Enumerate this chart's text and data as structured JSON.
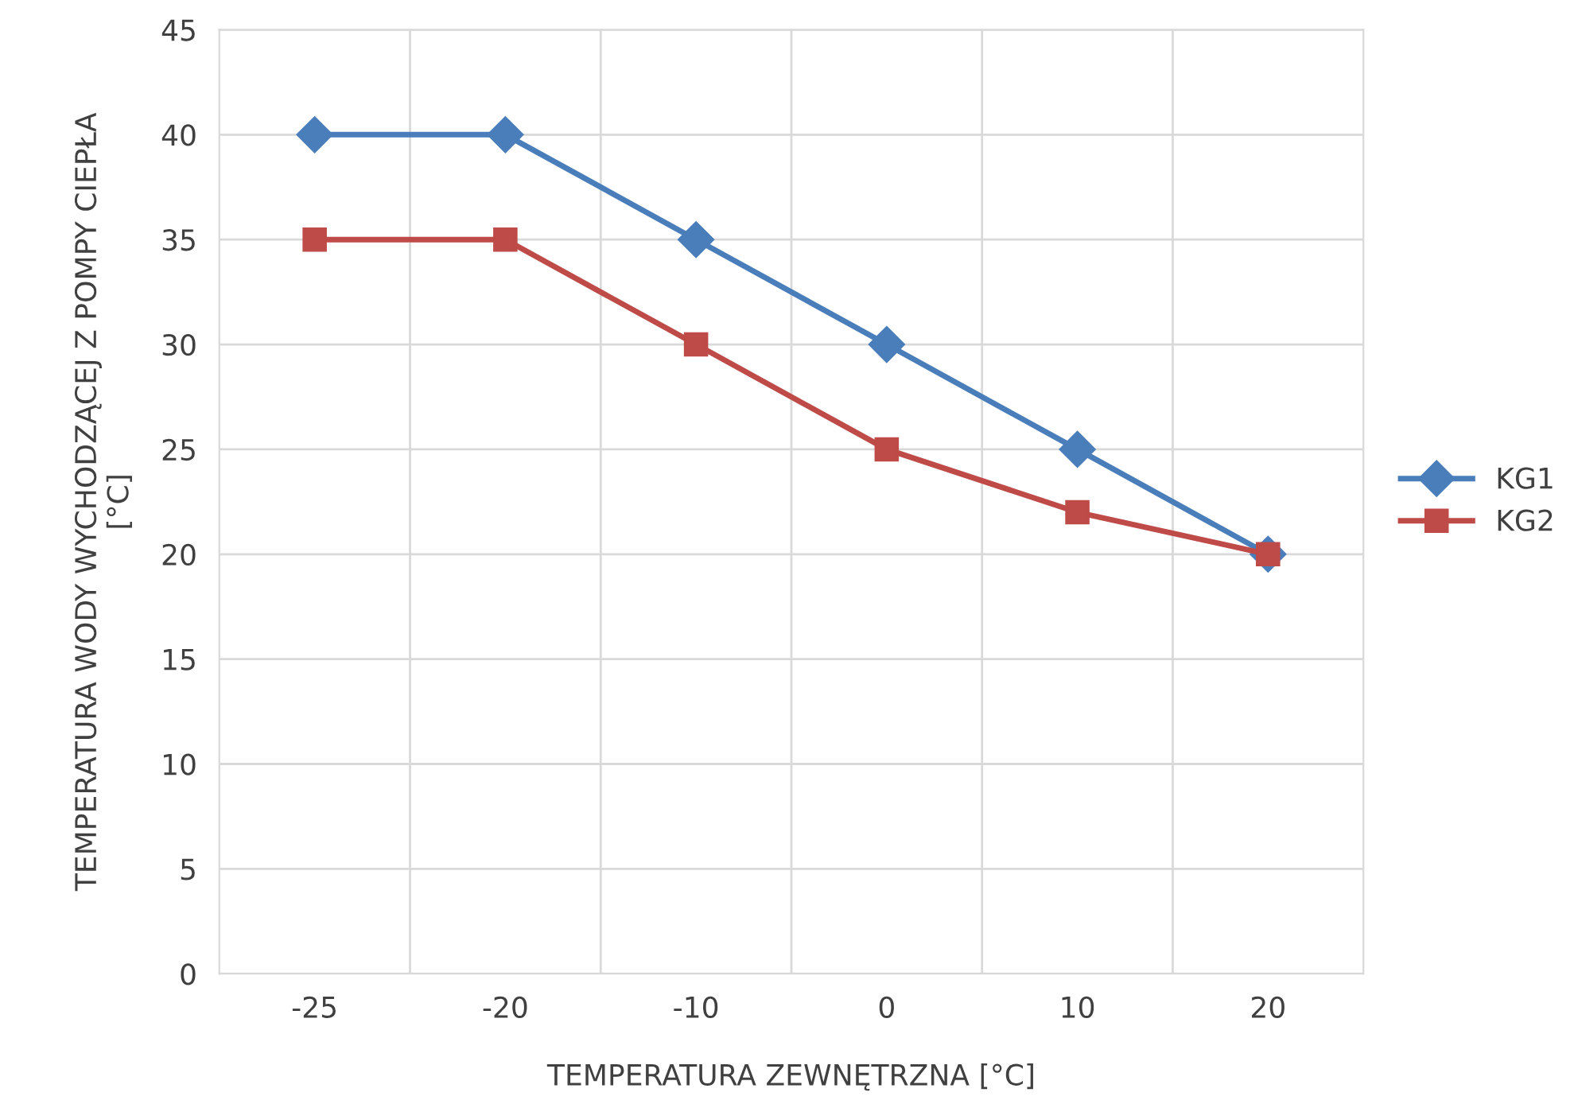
{
  "chart_data": {
    "type": "line",
    "xlabel": "TEMPERATURA ZEWNĘTRZNA [°C]",
    "ylabel": "TEMPERATURA WODY WYCHODZĄCEJ Z POMPY CIEPŁA\n[°C]",
    "categories": [
      "-25",
      "-20",
      "-10",
      "0",
      "10",
      "20"
    ],
    "series": [
      {
        "name": "KG1",
        "color": "#4a7ebb",
        "marker": "diamond",
        "values": [
          40,
          40,
          35,
          30,
          25,
          20
        ]
      },
      {
        "name": "KG2",
        "color": "#be4b48",
        "marker": "square",
        "values": [
          35,
          35,
          30,
          25,
          22,
          20
        ]
      }
    ],
    "ylim": [
      0,
      45
    ],
    "yticks": [
      0,
      5,
      10,
      15,
      20,
      25,
      30,
      35,
      40,
      45
    ],
    "grid": true,
    "legend": "right",
    "line_style": "solid"
  }
}
